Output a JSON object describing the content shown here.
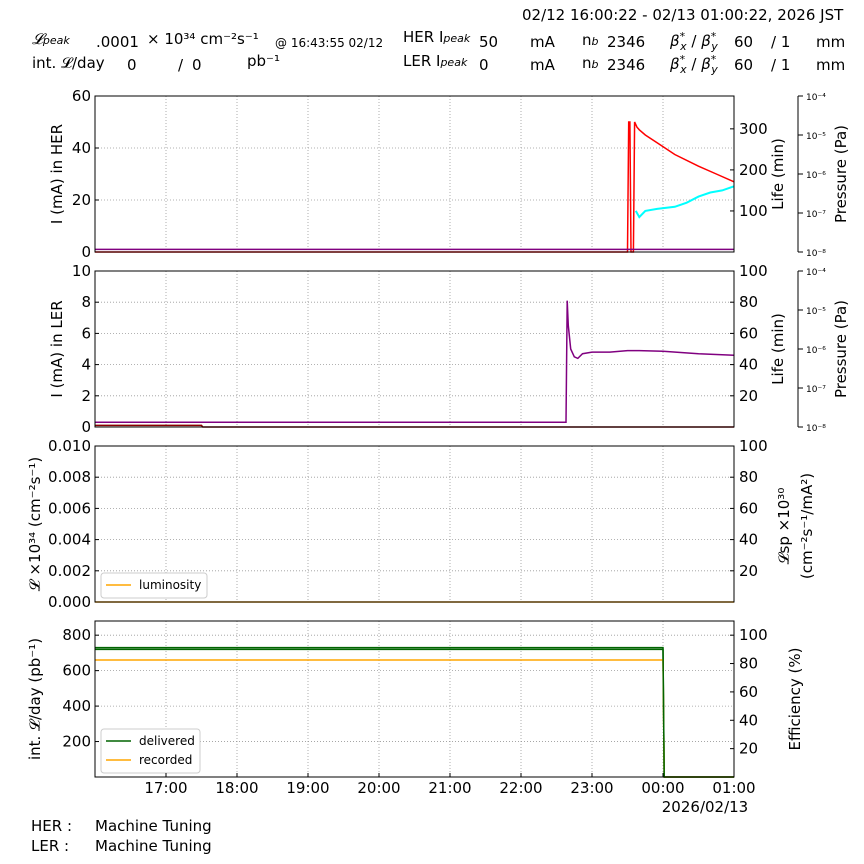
{
  "header": {
    "time_range": "02/12 16:00:22 - 02/13 01:00:22, 2026 JST",
    "lum_peak_label": "𝓛peak",
    "lum_peak_value": ".0001",
    "lum_peak_unit": "× 10³⁴ cm⁻²s⁻¹",
    "lum_peak_time": "@ 16:43:55 02/12",
    "int_lum_label": "int. 𝓛/day",
    "int_lum_value1": "0",
    "int_lum_slash": "/",
    "int_lum_value2": "0",
    "int_lum_unit": "pb⁻¹",
    "her_peak_label": "HER Ipeak",
    "her_peak_value": "50",
    "ler_peak_label": "LER Ipeak",
    "ler_peak_value": "0",
    "current_unit": "mA",
    "nb_label": "nb",
    "her_nb": "2346",
    "ler_nb": "2346",
    "beta_label": "β*x / β*y",
    "her_beta": "60",
    "her_beta_y": "/ 1",
    "ler_beta": "60",
    "ler_beta_y": "/ 1",
    "beta_unit": "mm"
  },
  "footer": {
    "her_label": "HER :",
    "her_status": "Machine Tuning",
    "ler_label": "LER :",
    "ler_status": "Machine Tuning"
  },
  "colors": {
    "current": "#ff0000",
    "life_her": "#00ffff",
    "life_ler": "#800080",
    "ler_dark": "#8b0000",
    "luminosity": "#ffa500",
    "delivered": "#006400",
    "recorded": "#ffa500"
  },
  "chart_data": [
    {
      "type": "line",
      "panel": "HER",
      "ylabel": "I (mA) in HER",
      "ylim": [
        0,
        60
      ],
      "yticks": [
        "0",
        "20",
        "40",
        "60"
      ],
      "y2label": "Life (min)",
      "y2lim": [
        0,
        380
      ],
      "y2ticks": [
        "100",
        "200",
        "300"
      ],
      "y3label": "Pressure (Pa)",
      "y3ticks": [
        "10⁻⁴",
        "10⁻⁵",
        "10⁻⁶",
        "10⁻⁷",
        "10⁻⁸"
      ],
      "grid": true,
      "series": [
        {
          "role": "current",
          "x": [
            "16:00",
            "23:25",
            "23:30",
            "23:31",
            "23:32",
            "23:33",
            "23:35",
            "23:36",
            "23:37",
            "23:38",
            "23:40",
            "23:45",
            "23:55",
            "00:10",
            "00:30",
            "00:45",
            "01:00"
          ],
          "values": [
            0,
            0,
            0,
            50,
            50,
            0,
            0,
            50,
            49,
            48,
            47,
            45,
            42,
            37.5,
            33,
            30,
            27
          ]
        },
        {
          "role": "life_her",
          "x": [
            "23:37",
            "23:40",
            "23:45",
            "23:55",
            "00:10",
            "00:20",
            "00:30",
            "00:40",
            "00:50",
            "01:00"
          ],
          "values": [
            100,
            85,
            100,
            105,
            110,
            120,
            135,
            145,
            150,
            160
          ]
        },
        {
          "role": "life_ler",
          "x": [
            "16:00",
            "01:00"
          ],
          "values": [
            1,
            1
          ]
        }
      ]
    },
    {
      "type": "line",
      "panel": "LER",
      "ylabel": "I (mA) in LER",
      "ylim": [
        0,
        10
      ],
      "yticks": [
        "0",
        "2",
        "4",
        "6",
        "8",
        "10"
      ],
      "y2label": "Life (min)",
      "y2lim": [
        0,
        100
      ],
      "y2ticks": [
        "20",
        "40",
        "60",
        "80",
        "100"
      ],
      "y3label": "Pressure (Pa)",
      "y3ticks": [
        "10⁻⁴",
        "10⁻⁵",
        "10⁻⁶",
        "10⁻⁷",
        "10⁻⁸"
      ],
      "grid": true,
      "series": [
        {
          "role": "life_ler",
          "x": [
            "16:00",
            "22:37",
            "22:38",
            "22:39",
            "22:40",
            "22:42",
            "22:45",
            "22:48",
            "22:52",
            "23:00",
            "23:15",
            "23:30",
            "23:40",
            "00:00",
            "00:30",
            "01:00"
          ],
          "values": [
            3,
            3,
            3,
            81,
            65,
            50,
            45,
            44,
            47,
            48,
            48,
            49,
            49,
            48.5,
            47,
            46
          ]
        },
        {
          "role": "current",
          "x": [
            "16:00",
            "17:30",
            "17:31",
            "01:00"
          ],
          "values": [
            0.1,
            0.1,
            0,
            0
          ]
        }
      ]
    },
    {
      "type": "line",
      "panel": "Luminosity",
      "ylabel": "𝓛 ×10³⁴ (cm⁻²s⁻¹)",
      "ylim": [
        0,
        0.01
      ],
      "yticks": [
        "0.000",
        "0.002",
        "0.004",
        "0.006",
        "0.008",
        "0.010"
      ],
      "y2label_line1": "𝓛sp ×10³⁰",
      "y2label_line2": "(cm⁻²s⁻¹/mA²)",
      "y2lim": [
        0,
        100
      ],
      "y2ticks": [
        "20",
        "40",
        "60",
        "80",
        "100"
      ],
      "legend": "lower-left",
      "legend_entries": [
        "luminosity"
      ],
      "grid": true,
      "series": [
        {
          "name": "luminosity",
          "role": "luminosity",
          "x": [
            "16:00",
            "01:00"
          ],
          "values": [
            0,
            0
          ]
        }
      ]
    },
    {
      "type": "line",
      "panel": "Integrated",
      "ylabel": "int. 𝓛/day (pb⁻¹)",
      "ylim": [
        0,
        880
      ],
      "yticks": [
        "200",
        "400",
        "600",
        "800"
      ],
      "y2label": "Efficiency (%)",
      "y2lim": [
        0,
        110
      ],
      "y2ticks": [
        "20",
        "40",
        "60",
        "80",
        "100"
      ],
      "legend": "lower-left",
      "legend_entries": [
        "delivered",
        "recorded"
      ],
      "grid": true,
      "xticks": [
        "17:00",
        "18:00",
        "19:00",
        "20:00",
        "21:00",
        "22:00",
        "23:00",
        "00:00",
        "01:00"
      ],
      "xdate": "2026/02/13",
      "series": [
        {
          "name": "delivered",
          "role": "delivered",
          "x": [
            "16:00",
            "00:00",
            "00:01",
            "01:00"
          ],
          "values": [
            730,
            730,
            0,
            0
          ]
        },
        {
          "name": "recorded",
          "role": "recorded",
          "x": [
            "16:00",
            "00:00",
            "00:01",
            "01:00"
          ],
          "values": [
            660,
            660,
            0,
            0
          ]
        },
        {
          "role": "efficiency",
          "x": [
            "16:00",
            "00:00",
            "00:01",
            "01:00"
          ],
          "values": [
            90,
            90,
            0,
            0
          ]
        }
      ]
    }
  ]
}
